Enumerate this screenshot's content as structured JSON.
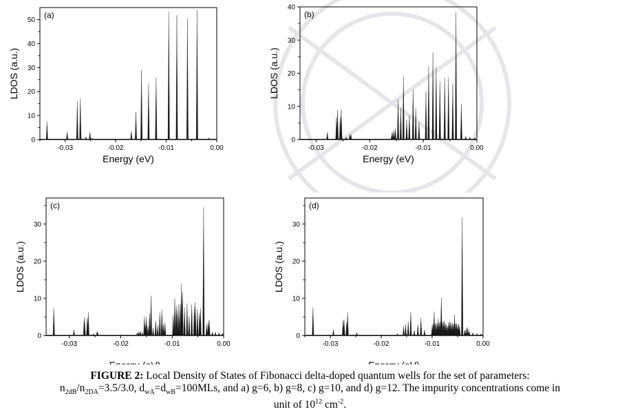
{
  "figure": {
    "caption_label": "FIGURE 2:",
    "caption_line1": " Local Density of States of Fibonacci delta-doped quantum wells for the set of parameters:",
    "caption_line2_parts": [
      "n",
      "2dB",
      "/n",
      "2DA",
      "=3.5/3.0, d",
      "wA",
      "=d",
      "wB",
      "=100MLs, and a) g=6, b) g=8, c) g=10, and d) g=12. The impurity concentrations come in"
    ],
    "caption_line3_parts": [
      "unit of 10",
      "12",
      " cm",
      "-2",
      "."
    ]
  },
  "chart_data": [
    {
      "type": "bar",
      "panel_label": "(a)",
      "title": "",
      "xlabel": "Energy (eV)",
      "ylabel": "LDOS (a.u.)",
      "xlim": [
        -0.035,
        0.0
      ],
      "ylim": [
        0,
        55
      ],
      "xticks": [
        -0.03,
        -0.02,
        -0.01,
        0.0
      ],
      "xtick_labels": [
        "-0.03",
        "-0.02",
        "-0.01",
        "0.00"
      ],
      "yticks": [
        0,
        10,
        20,
        30,
        40,
        50
      ],
      "ytick_labels": [
        "0",
        "10",
        "20",
        "30",
        "40",
        "50"
      ],
      "points": [
        [
          -0.0336,
          7.5
        ],
        [
          -0.0296,
          3.3
        ],
        [
          -0.0276,
          16
        ],
        [
          -0.027,
          17.2
        ],
        [
          -0.0259,
          1.2
        ],
        [
          -0.0251,
          3.2
        ],
        [
          -0.0247,
          0.8
        ],
        [
          -0.0169,
          3.5
        ],
        [
          -0.016,
          11.5
        ],
        [
          -0.0149,
          29
        ],
        [
          -0.0135,
          23.3
        ],
        [
          -0.012,
          25.7
        ],
        [
          -0.0095,
          53.3
        ],
        [
          -0.0079,
          51.8
        ],
        [
          -0.0058,
          50.5
        ],
        [
          -0.0039,
          54
        ],
        [
          -0.0016,
          0.8
        ],
        [
          -0.0008,
          0.4
        ]
      ]
    },
    {
      "type": "bar",
      "panel_label": "(b)",
      "title": "",
      "xlabel": "Energy (eV)",
      "ylabel": "LDOS (a.u.)",
      "xlim": [
        -0.033,
        0.0
      ],
      "ylim": [
        0,
        40
      ],
      "xticks": [
        -0.03,
        -0.02,
        -0.01,
        0.0
      ],
      "xtick_labels": [
        "-0.03",
        "-0.02",
        "-0.01",
        "0.00"
      ],
      "yticks": [
        0,
        10,
        20,
        30,
        40
      ],
      "ytick_labels": [
        "0",
        "10",
        "20",
        "30",
        "40"
      ],
      "points": [
        [
          -0.0279,
          2.2
        ],
        [
          -0.0262,
          6.7
        ],
        [
          -0.026,
          8.9
        ],
        [
          -0.0255,
          6.8
        ],
        [
          -0.0253,
          9.1
        ],
        [
          -0.0244,
          0.8
        ],
        [
          -0.0237,
          1.5
        ],
        [
          -0.0235,
          1.6
        ],
        [
          -0.0159,
          1.2
        ],
        [
          -0.0158,
          2.3
        ],
        [
          -0.0155,
          2.8
        ],
        [
          -0.0152,
          3.3
        ],
        [
          -0.0147,
          12
        ],
        [
          -0.0142,
          9.6
        ],
        [
          -0.0137,
          19
        ],
        [
          -0.0131,
          6
        ],
        [
          -0.0126,
          7.3
        ],
        [
          -0.0119,
          15.1
        ],
        [
          -0.0114,
          9.4
        ],
        [
          -0.0108,
          5.3
        ],
        [
          -0.0095,
          14.5
        ],
        [
          -0.009,
          22
        ],
        [
          -0.0082,
          26.3
        ],
        [
          -0.0076,
          22
        ],
        [
          -0.0069,
          17.6
        ],
        [
          -0.006,
          18.6
        ],
        [
          -0.0053,
          18.7
        ],
        [
          -0.0045,
          16.8
        ],
        [
          -0.0039,
          38.3
        ],
        [
          -0.0029,
          10.8
        ],
        [
          -0.0021,
          1
        ],
        [
          -0.0013,
          0.8
        ],
        [
          -0.0004,
          0.6
        ]
      ]
    },
    {
      "type": "bar",
      "panel_label": "(c)",
      "title": "",
      "xlabel": "Energy (eV)",
      "ylabel": "LDOS (a.u.)",
      "xlim": [
        -0.0345,
        0.0
      ],
      "ylim": [
        0,
        37
      ],
      "xticks": [
        -0.03,
        -0.02,
        -0.01,
        0.0
      ],
      "xtick_labels": [
        "-0.03",
        "-0.02",
        "-0.01",
        "0.00"
      ],
      "yticks": [
        0,
        10,
        20,
        30
      ],
      "ytick_labels": [
        "0",
        "10",
        "20",
        "30"
      ],
      "points": [
        [
          -0.033,
          7.5
        ],
        [
          -0.0291,
          1.6
        ],
        [
          -0.0271,
          5
        ],
        [
          -0.027,
          3.8
        ],
        [
          -0.0265,
          4.7
        ],
        [
          -0.0263,
          6.3
        ],
        [
          -0.0253,
          0.5
        ],
        [
          -0.0246,
          1
        ],
        [
          -0.0245,
          1
        ],
        [
          -0.0168,
          0.8
        ],
        [
          -0.0165,
          1
        ],
        [
          -0.0162,
          1.2
        ],
        [
          -0.0158,
          0.9
        ],
        [
          -0.0154,
          5.1
        ],
        [
          -0.0152,
          3
        ],
        [
          -0.015,
          5.1
        ],
        [
          -0.0147,
          2.5
        ],
        [
          -0.0144,
          6
        ],
        [
          -0.0141,
          10.7
        ],
        [
          -0.0137,
          2
        ],
        [
          -0.0132,
          4
        ],
        [
          -0.0128,
          2.8
        ],
        [
          -0.0124,
          6.3
        ],
        [
          -0.012,
          7
        ],
        [
          -0.0117,
          3
        ],
        [
          -0.0114,
          3.5
        ],
        [
          -0.0098,
          5.6
        ],
        [
          -0.0095,
          10
        ],
        [
          -0.0092,
          8
        ],
        [
          -0.009,
          7
        ],
        [
          -0.0087,
          8.5
        ],
        [
          -0.0084,
          8.4
        ],
        [
          -0.0082,
          14
        ],
        [
          -0.008,
          11.6
        ],
        [
          -0.0076,
          7.6
        ],
        [
          -0.0071,
          8.6
        ],
        [
          -0.0067,
          5.2
        ],
        [
          -0.0062,
          8.3
        ],
        [
          -0.0057,
          7.8
        ],
        [
          -0.0055,
          9
        ],
        [
          -0.0051,
          7
        ],
        [
          -0.0047,
          6
        ],
        [
          -0.0045,
          7.4
        ],
        [
          -0.0039,
          34.5
        ],
        [
          -0.0033,
          3
        ],
        [
          -0.003,
          3.7
        ],
        [
          -0.0028,
          4.2
        ],
        [
          -0.0022,
          1
        ],
        [
          -0.0016,
          1
        ],
        [
          -0.0009,
          0.8
        ],
        [
          -0.0002,
          0.6
        ]
      ]
    },
    {
      "type": "bar",
      "panel_label": "(d)",
      "title": "",
      "xlabel": "Energy (eV)",
      "ylabel": "LDOS (a.u.)",
      "xlim": [
        -0.035,
        0.0
      ],
      "ylim": [
        0,
        37
      ],
      "xticks": [
        -0.03,
        -0.02,
        -0.01,
        0.0
      ],
      "xtick_labels": [
        "-0.03",
        "-0.02",
        "-0.01",
        "0.00"
      ],
      "yticks": [
        0,
        10,
        20,
        30
      ],
      "ytick_labels": [
        "0",
        "10",
        "20",
        "30"
      ],
      "points": [
        [
          -0.0334,
          7.5
        ],
        [
          -0.0294,
          1.6
        ],
        [
          -0.0275,
          4
        ],
        [
          -0.0273,
          4.3
        ],
        [
          -0.0268,
          3.5
        ],
        [
          -0.0266,
          6.3
        ],
        [
          -0.0255,
          0.3
        ],
        [
          -0.0248,
          0.8
        ],
        [
          -0.0168,
          0.5
        ],
        [
          -0.0156,
          2.5
        ],
        [
          -0.0152,
          3
        ],
        [
          -0.0147,
          3.8
        ],
        [
          -0.0142,
          6.3
        ],
        [
          -0.0135,
          1.5
        ],
        [
          -0.0128,
          3
        ],
        [
          -0.0122,
          4.7
        ],
        [
          -0.0115,
          1.5
        ],
        [
          -0.01,
          2.8
        ],
        [
          -0.0098,
          3.2
        ],
        [
          -0.0096,
          6.4
        ],
        [
          -0.0094,
          3
        ],
        [
          -0.0092,
          3.5
        ],
        [
          -0.009,
          3.2
        ],
        [
          -0.0088,
          4.5
        ],
        [
          -0.0086,
          3.4
        ],
        [
          -0.0084,
          3.8
        ],
        [
          -0.0082,
          10.2
        ],
        [
          -0.008,
          3.5
        ],
        [
          -0.0078,
          3.8
        ],
        [
          -0.0076,
          4
        ],
        [
          -0.0074,
          3.2
        ],
        [
          -0.0072,
          3
        ],
        [
          -0.007,
          2.6
        ],
        [
          -0.0068,
          3.4
        ],
        [
          -0.0066,
          3.8
        ],
        [
          -0.0064,
          3.6
        ],
        [
          -0.0062,
          3.2
        ],
        [
          -0.006,
          3.4
        ],
        [
          -0.0058,
          3
        ],
        [
          -0.0056,
          5.6
        ],
        [
          -0.0054,
          3.2
        ],
        [
          -0.0052,
          3.3
        ],
        [
          -0.005,
          2.8
        ],
        [
          -0.0048,
          3.2
        ],
        [
          -0.0046,
          2.5
        ],
        [
          -0.0041,
          31.8
        ],
        [
          -0.0036,
          1.5
        ],
        [
          -0.0033,
          2
        ],
        [
          -0.003,
          2.3
        ],
        [
          -0.0027,
          1.2
        ],
        [
          -0.002,
          0.8
        ],
        [
          -0.0012,
          0.6
        ],
        [
          -0.0004,
          0.5
        ]
      ]
    }
  ]
}
